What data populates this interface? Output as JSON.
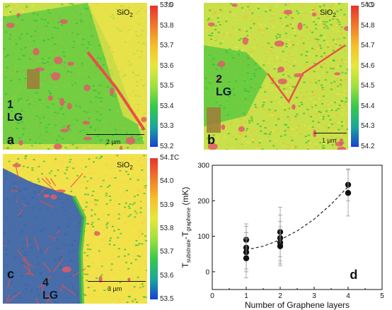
{
  "panels": [
    {
      "letter": "a",
      "layer_label": "1 LG",
      "substrate": "SiO",
      "substrate_sub": "2",
      "unit": "°C",
      "ticks": [
        "53.9",
        "53.8",
        "53.7",
        "53.6",
        "53.5",
        "53.4",
        "53.3",
        "53.2"
      ],
      "scale_bar": "2 µm"
    },
    {
      "letter": "b",
      "layer_label": "2 LG",
      "substrate": "SiO",
      "substrate_sub": "2",
      "unit": "°C",
      "ticks": [
        "54.9",
        "54.8",
        "54.7",
        "54.6",
        "54.5",
        "54.4",
        "54.3",
        "54.2"
      ],
      "scale_bar": "1 µm"
    },
    {
      "letter": "c",
      "layer_label": "4 LG",
      "substrate": "SiO",
      "substrate_sub": "2",
      "unit": "°C",
      "ticks": [
        "54.1",
        "54.0",
        "53.9",
        "53.8",
        "53.7",
        "53.6",
        "53.5"
      ],
      "scale_bar": "3 µm"
    }
  ],
  "colorbar_colors": [
    "#e8322c",
    "#f07a2b",
    "#f5c02a",
    "#e6e83a",
    "#9fe03e",
    "#36c94a",
    "#1aa89a",
    "#1a3fd1"
  ],
  "map_colors": {
    "base": "#c8e04a",
    "green": "#2ebf3c",
    "red": "#e8504a",
    "blue": "#2a58b8",
    "yellow": "#f2e24a",
    "brown": "#a07a3a"
  },
  "chart_data": {
    "type": "scatter",
    "panel_letter": "d",
    "xlabel": "Number of Graphene layers",
    "ylabel_main": "T",
    "ylabel_sub1": "substrate",
    "ylabel_mid": "-T",
    "ylabel_sub2": "graphene",
    "ylabel_unit": "(mK)",
    "xlim": [
      0,
      5
    ],
    "ylim": [
      -50,
      300
    ],
    "xticks": [
      0,
      1,
      2,
      3,
      4,
      5
    ],
    "yticks": [
      0,
      100,
      200,
      300
    ],
    "points": [
      {
        "x": 1,
        "y": 90,
        "err": 45
      },
      {
        "x": 1,
        "y": 68,
        "err": 60
      },
      {
        "x": 1,
        "y": 55,
        "err": 55
      },
      {
        "x": 1,
        "y": 38,
        "err": 55
      },
      {
        "x": 2,
        "y": 112,
        "err": 70
      },
      {
        "x": 2,
        "y": 95,
        "err": 65
      },
      {
        "x": 2,
        "y": 82,
        "err": 60
      },
      {
        "x": 2,
        "y": 72,
        "err": 55
      },
      {
        "x": 4,
        "y": 245,
        "err": 45
      },
      {
        "x": 4,
        "y": 222,
        "err": 65
      }
    ],
    "fit": {
      "x": [
        1,
        1.5,
        2,
        2.5,
        3,
        3.5,
        4
      ],
      "y": [
        62,
        72,
        90,
        115,
        148,
        190,
        240
      ]
    }
  }
}
